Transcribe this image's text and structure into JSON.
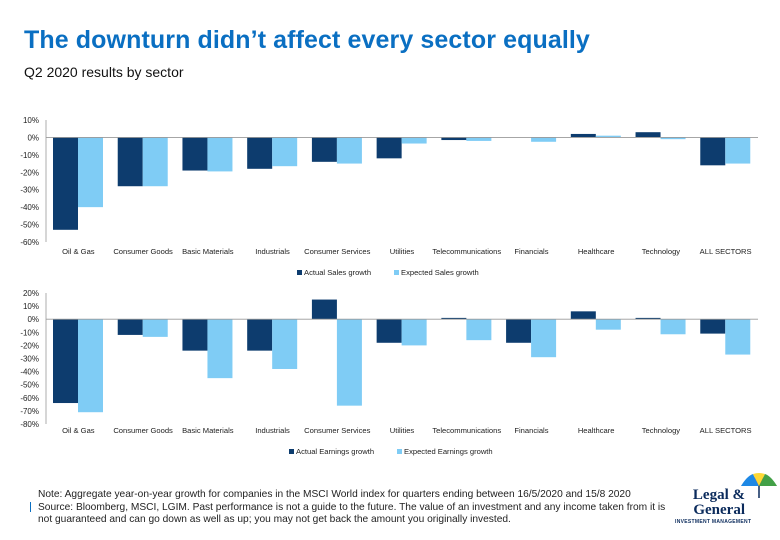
{
  "header": {
    "title": "The downturn didn’t affect every sector equally",
    "subtitle": "Q2 2020 results by sector"
  },
  "colors": {
    "title": "#0A6FC2",
    "actual": "#0D3C6E",
    "expected": "#7FCCF5"
  },
  "chart_data": [
    {
      "type": "bar",
      "categories": [
        "Oil & Gas",
        "Consumer Goods",
        "Basic Materials",
        "Industrials",
        "Consumer Services",
        "Utilities",
        "Telecommunications",
        "Financials",
        "Healthcare",
        "Technology",
        "ALL SECTORS"
      ],
      "series": [
        {
          "name": "Actual Sales growth",
          "color": "#0D3C6E",
          "values": [
            -53,
            -28,
            -19,
            -18,
            -14,
            -12,
            -1.5,
            0,
            2,
            3,
            -16
          ]
        },
        {
          "name": "Expected Sales growth",
          "color": "#7FCCF5",
          "values": [
            -40,
            -28,
            -19.5,
            -16.5,
            -15,
            -3.5,
            -2,
            -2.5,
            1,
            -1,
            -15
          ]
        }
      ],
      "ylim": [
        -60,
        10
      ],
      "yticks": [
        "10%",
        "0%",
        "-10%",
        "-20%",
        "-30%",
        "-40%",
        "-50%",
        "-60%"
      ],
      "legend_position": "bottom",
      "grid": false
    },
    {
      "type": "bar",
      "categories": [
        "Oil & Gas",
        "Consumer Goods",
        "Basic Materials",
        "Industrials",
        "Consumer Services",
        "Utilities",
        "Telecommunications",
        "Financials",
        "Healthcare",
        "Technology",
        "ALL SECTORS"
      ],
      "series": [
        {
          "name": "Actual Earnings growth",
          "color": "#0D3C6E",
          "values": [
            -64,
            -12,
            -24,
            -24,
            15,
            -18,
            1,
            -18,
            6,
            1,
            -11
          ]
        },
        {
          "name": "Expected Earnings growth",
          "color": "#7FCCF5",
          "values": [
            -71,
            -13.5,
            -45,
            -38,
            -66,
            -20,
            -16,
            -29,
            -8,
            -11.5,
            -27
          ]
        }
      ],
      "ylim": [
        -80,
        20
      ],
      "yticks": [
        "20%",
        "10%",
        "0%",
        "-10%",
        "-20%",
        "-30%",
        "-40%",
        "-50%",
        "-60%",
        "-70%",
        "-80%"
      ],
      "legend_position": "bottom",
      "grid": false
    }
  ],
  "footer": {
    "note": "Note: Aggregate year-on-year growth for companies in the MSCI World index for quarters ending between 16/5/2020 and 15/8 2020",
    "source": "Source: Bloomberg, MSCI, LGIM. Past performance is not a guide to the future. The value of an investment and any income taken from it is not guaranteed and can go down as well as up; you may not get back the amount you originally invested."
  },
  "logo": {
    "line1": "Legal &",
    "line2": "General",
    "tagline": "INVESTMENT MANAGEMENT",
    "icon": "umbrella-icon"
  }
}
